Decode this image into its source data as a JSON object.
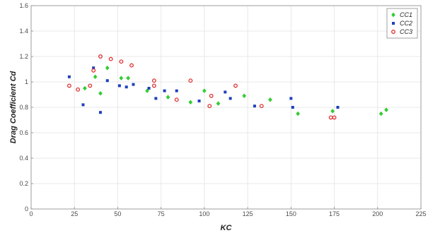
{
  "chart_data": {
    "type": "scatter",
    "xlabel": "KC",
    "ylabel": "Drag Coefficient Cd",
    "xlim": [
      0,
      225
    ],
    "ylim": [
      0,
      1.6
    ],
    "xticks": [
      0,
      25,
      50,
      75,
      100,
      125,
      150,
      175,
      200,
      225
    ],
    "yticks": [
      0,
      0.2,
      0.4,
      0.6,
      0.8,
      1.0,
      1.2,
      1.4,
      1.6
    ],
    "xtick_labels": [
      "0",
      "25",
      "50",
      "75",
      "100",
      "125",
      "150",
      "175",
      "200",
      "225"
    ],
    "ytick_labels": [
      "0",
      "0.2",
      "0.4",
      "0.6",
      "0.8",
      "1",
      "1.2",
      "1.4",
      "1.6"
    ],
    "grid": true,
    "legend_position": "top-right",
    "series": [
      {
        "name": "CC1",
        "color": "#33cc33",
        "marker": "diamond",
        "points": [
          [
            31,
            0.95
          ],
          [
            37,
            1.04
          ],
          [
            40,
            0.91
          ],
          [
            44,
            1.11
          ],
          [
            52,
            1.03
          ],
          [
            56,
            1.03
          ],
          [
            67,
            0.93
          ],
          [
            79,
            0.88
          ],
          [
            92,
            0.84
          ],
          [
            100,
            0.93
          ],
          [
            108,
            0.83
          ],
          [
            123,
            0.89
          ],
          [
            138,
            0.86
          ],
          [
            154,
            0.75
          ],
          [
            174,
            0.77
          ],
          [
            202,
            0.75
          ],
          [
            205,
            0.78
          ]
        ]
      },
      {
        "name": "CC2",
        "color": "#1f3fbf",
        "marker": "square",
        "points": [
          [
            22,
            1.04
          ],
          [
            30,
            0.82
          ],
          [
            36,
            1.11
          ],
          [
            40,
            0.76
          ],
          [
            44,
            1.01
          ],
          [
            51,
            0.97
          ],
          [
            55,
            0.96
          ],
          [
            59,
            0.98
          ],
          [
            68,
            0.95
          ],
          [
            72,
            0.87
          ],
          [
            77,
            0.93
          ],
          [
            84,
            0.93
          ],
          [
            97,
            0.85
          ],
          [
            112,
            0.92
          ],
          [
            115,
            0.87
          ],
          [
            129,
            0.81
          ],
          [
            150,
            0.87
          ],
          [
            151,
            0.8
          ],
          [
            177,
            0.8
          ]
        ]
      },
      {
        "name": "CC3",
        "color": "#e03030",
        "marker": "circle",
        "points": [
          [
            22,
            0.97
          ],
          [
            27,
            0.94
          ],
          [
            34,
            0.97
          ],
          [
            36,
            1.09
          ],
          [
            40,
            1.2
          ],
          [
            46,
            1.18
          ],
          [
            52,
            1.16
          ],
          [
            58,
            1.13
          ],
          [
            71,
            1.01
          ],
          [
            71,
            0.97
          ],
          [
            84,
            0.86
          ],
          [
            92,
            1.01
          ],
          [
            103,
            0.81
          ],
          [
            104,
            0.89
          ],
          [
            118,
            0.97
          ],
          [
            133,
            0.81
          ],
          [
            173,
            0.72
          ],
          [
            175,
            0.72
          ]
        ]
      }
    ]
  }
}
